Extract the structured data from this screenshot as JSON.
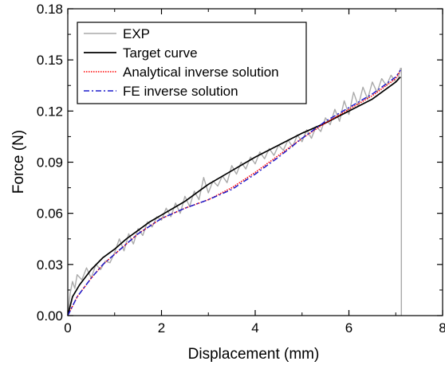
{
  "chart_data": {
    "type": "line",
    "xlabel": "Displacement (mm)",
    "ylabel": "Force (N)",
    "xlim": [
      0,
      8
    ],
    "ylim": [
      0,
      0.18
    ],
    "x_ticks": [
      "0",
      "2",
      "4",
      "6",
      "8"
    ],
    "y_ticks": [
      "0.00",
      "0.03",
      "0.06",
      "0.09",
      "0.12",
      "0.15",
      "0.18"
    ],
    "legend_position": "top-left",
    "series": [
      {
        "name": "EXP",
        "color": "#aaaaaa",
        "style": "solid",
        "x": [
          0,
          0.05,
          0.1,
          0.15,
          0.2,
          0.3,
          0.4,
          0.5,
          0.6,
          0.7,
          0.8,
          0.9,
          1.0,
          1.1,
          1.2,
          1.3,
          1.4,
          1.5,
          1.6,
          1.7,
          1.8,
          1.9,
          2.0,
          2.1,
          2.2,
          2.3,
          2.4,
          2.5,
          2.6,
          2.7,
          2.8,
          2.9,
          3.0,
          3.1,
          3.2,
          3.3,
          3.4,
          3.5,
          3.6,
          3.7,
          3.8,
          3.9,
          4.0,
          4.1,
          4.2,
          4.3,
          4.4,
          4.5,
          4.6,
          4.7,
          4.8,
          4.9,
          5.0,
          5.1,
          5.2,
          5.3,
          5.4,
          5.5,
          5.6,
          5.7,
          5.8,
          5.9,
          6.0,
          6.1,
          6.2,
          6.3,
          6.4,
          6.5,
          6.6,
          6.7,
          6.8,
          6.9,
          7.0,
          7.05,
          7.1,
          7.12,
          7.12
        ],
        "y": [
          0.0,
          0.013,
          0.02,
          0.016,
          0.024,
          0.021,
          0.028,
          0.022,
          0.03,
          0.027,
          0.032,
          0.031,
          0.037,
          0.045,
          0.038,
          0.048,
          0.042,
          0.051,
          0.047,
          0.055,
          0.052,
          0.058,
          0.056,
          0.063,
          0.058,
          0.066,
          0.06,
          0.07,
          0.064,
          0.073,
          0.068,
          0.081,
          0.072,
          0.079,
          0.076,
          0.082,
          0.078,
          0.088,
          0.083,
          0.09,
          0.086,
          0.093,
          0.089,
          0.096,
          0.092,
          0.098,
          0.094,
          0.1,
          0.097,
          0.103,
          0.099,
          0.106,
          0.102,
          0.109,
          0.104,
          0.111,
          0.108,
          0.116,
          0.112,
          0.121,
          0.114,
          0.126,
          0.118,
          0.131,
          0.123,
          0.134,
          0.127,
          0.137,
          0.131,
          0.139,
          0.135,
          0.141,
          0.137,
          0.139,
          0.145,
          0.145,
          0.0
        ]
      },
      {
        "name": "Target curve",
        "color": "#000000",
        "style": "solid",
        "x": [
          0,
          0.1,
          0.25,
          0.5,
          0.75,
          1.0,
          1.25,
          1.5,
          1.75,
          2.0,
          2.5,
          3.0,
          3.5,
          4.0,
          4.5,
          5.0,
          5.5,
          6.0,
          6.5,
          7.0,
          7.1
        ],
        "y": [
          0.0,
          0.011,
          0.018,
          0.027,
          0.034,
          0.039,
          0.045,
          0.05,
          0.055,
          0.059,
          0.067,
          0.077,
          0.085,
          0.093,
          0.1,
          0.107,
          0.113,
          0.12,
          0.127,
          0.137,
          0.14
        ]
      },
      {
        "name": "Analytical inverse solution",
        "color": "#ff0000",
        "style": "dotted",
        "x": [
          0,
          0.2,
          0.5,
          0.75,
          1.0,
          1.5,
          2.0,
          2.5,
          3.0,
          3.5,
          4.0,
          4.5,
          5.0,
          5.5,
          6.0,
          6.5,
          7.0,
          7.1
        ],
        "y": [
          0.0,
          0.011,
          0.022,
          0.03,
          0.036,
          0.048,
          0.057,
          0.063,
          0.068,
          0.075,
          0.084,
          0.094,
          0.104,
          0.113,
          0.121,
          0.129,
          0.139,
          0.144
        ]
      },
      {
        "name": "FE inverse solution",
        "color": "#1c1ccc",
        "style": "dashdot",
        "x": [
          0,
          0.2,
          0.5,
          0.75,
          1.0,
          1.5,
          2.0,
          2.5,
          3.0,
          3.5,
          4.0,
          4.5,
          5.0,
          5.5,
          6.0,
          6.5,
          7.0,
          7.1
        ],
        "y": [
          0.0,
          0.011,
          0.022,
          0.03,
          0.036,
          0.048,
          0.057,
          0.063,
          0.068,
          0.074,
          0.083,
          0.093,
          0.104,
          0.114,
          0.122,
          0.13,
          0.14,
          0.144
        ]
      }
    ]
  }
}
